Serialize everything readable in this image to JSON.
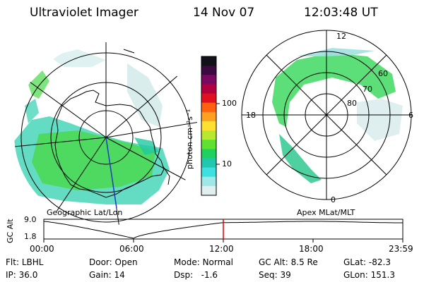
{
  "header": {
    "title": "Ultraviolet Imager",
    "date": "14 Nov 07",
    "time": "12:03:48 UT"
  },
  "left_panel": {
    "label": "Geographic Lat/Lon",
    "view_icon": "globe-south-pole-projection"
  },
  "right_panel": {
    "label": "Apex MLat/MLT",
    "mlt_labels": {
      "top": "12",
      "left": "18",
      "right": "6",
      "bottom": "0"
    },
    "lat_labels": [
      "60",
      "70",
      "80"
    ]
  },
  "colorbar": {
    "unit_label": "photon cm⁻²s⁻¹",
    "ticks": [
      "100",
      "10"
    ],
    "colors": [
      "#121018",
      "#3a0a40",
      "#7a0a60",
      "#b00040",
      "#e01020",
      "#ff6010",
      "#ffa020",
      "#ffe030",
      "#b8e830",
      "#60e030",
      "#20d060",
      "#20c8b0",
      "#40e0e0",
      "#a0e8e8",
      "#e0f0f0"
    ]
  },
  "altitude_plot": {
    "ylabel": "GC Alt",
    "yticks": [
      "9.0",
      "1.8"
    ],
    "xticks": [
      "00:00",
      "06:00",
      "12:00",
      "18:00",
      "23:59"
    ],
    "current_marker_color": "#e00000"
  },
  "chart_data": {
    "type": "line",
    "x": [
      "00:00",
      "06:00",
      "12:00",
      "18:00",
      "23:59"
    ],
    "series": [
      {
        "values": [
          9.0,
          1.8,
          8.5,
          9.0,
          8.4
        ]
      }
    ],
    "ylabel": "GC Alt",
    "ylim": [
      1.8,
      9.0
    ]
  },
  "info": {
    "flt_label": "Flt:",
    "flt_value": "LBHL",
    "ip_label": "IP:",
    "ip_value": "36.0",
    "door_label": "Door:",
    "door_value": "Open",
    "gain_label": "Gain:",
    "gain_value": "14",
    "mode_label": "Mode:",
    "mode_value": "Normal",
    "dsp_label": "Dsp:",
    "dsp_value": "-1.6",
    "gcalt_label": "GC Alt:",
    "gcalt_value": "8.5 Re",
    "seq_label": "Seq:",
    "seq_value": "39",
    "glat_label": "GLat:",
    "glat_value": "-82.3",
    "glon_label": "GLon:",
    "glon_value": "151.3"
  }
}
